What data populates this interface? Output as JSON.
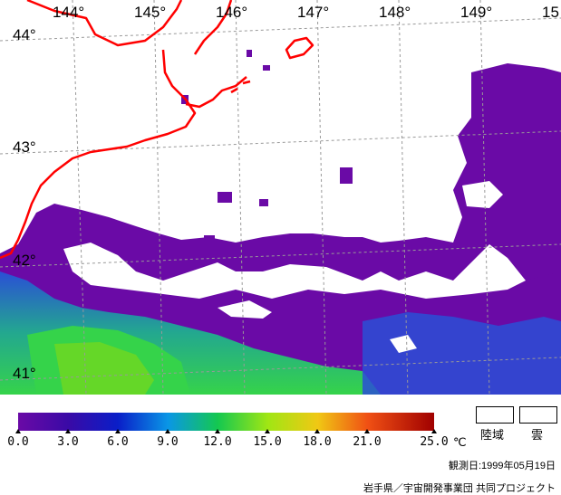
{
  "map": {
    "lon_labels": [
      "144°",
      "145°",
      "146°",
      "147°",
      "148°",
      "149°",
      "15"
    ],
    "lat_labels": [
      "44°",
      "43°",
      "42°",
      "41°"
    ],
    "colors": {
      "cloud": "#ffffff",
      "cold_water": "#6a0aa6",
      "mid_water": "#1e3cc8",
      "warm_water": "#2ec46a",
      "coast": "#ff0000",
      "grid": "#999999"
    }
  },
  "legend": {
    "ticks": [
      "0.0",
      "3.0",
      "6.0",
      "9.0",
      "12.0",
      "15.0",
      "18.0",
      "21.0",
      "25.0"
    ],
    "unit": "℃",
    "land_label": "陸域",
    "cloud_label": "雲",
    "observation_date": "観測日:1999年05月19日",
    "credit": "岩手県／宇宙開発事業団 共同プロジェクト"
  }
}
